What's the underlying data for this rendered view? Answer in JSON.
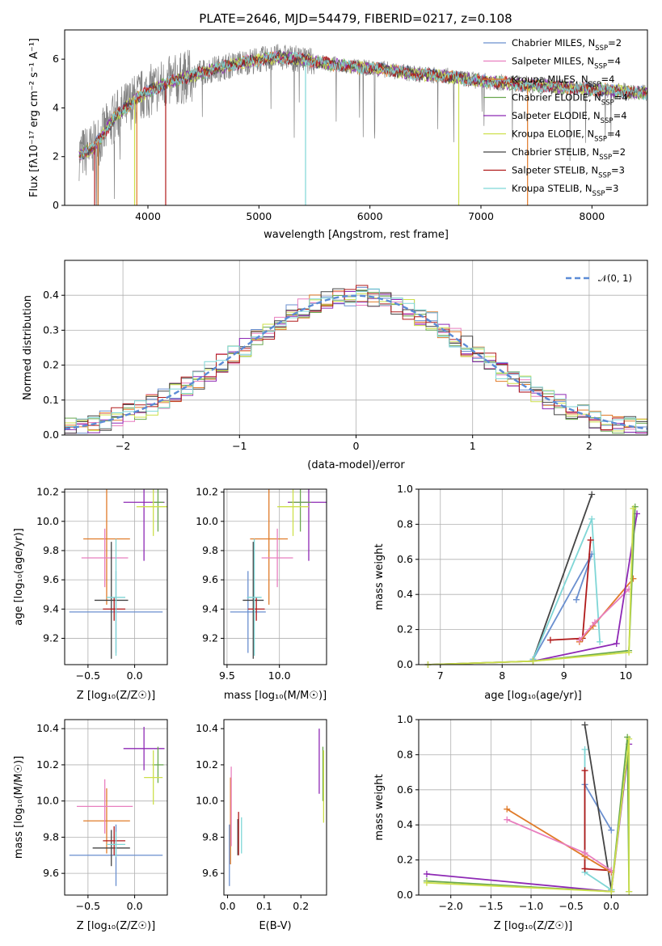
{
  "chart_data": [
    {
      "id": "spectrum",
      "type": "line",
      "title": "PLATE=2646, MJD=54479, FIBERID=0217, z=0.108",
      "xlabel": "wavelength [Angstrom, rest frame]",
      "ylabel": "Flux [fλ10⁻¹⁷ erg cm⁻² s⁻¹ A⁻¹]",
      "xlim": [
        3250,
        8500
      ],
      "ylim": [
        0,
        7.2
      ],
      "xticks": [
        4000,
        5000,
        6000,
        7000,
        8000
      ],
      "yticks": [
        0,
        2,
        4,
        6
      ],
      "grid": false,
      "legend_position": "right",
      "continuum": {
        "x": [
          3380,
          3500,
          3700,
          3900,
          4100,
          4300,
          4600,
          4900,
          5200,
          5500,
          5800,
          6100,
          6400,
          6700,
          7000,
          7300,
          7600,
          7900,
          8200,
          8500
        ],
        "y": [
          2.1,
          2.3,
          3.6,
          4.4,
          4.9,
          5.2,
          5.6,
          5.9,
          6.1,
          5.9,
          5.7,
          5.6,
          5.4,
          5.3,
          5.1,
          5.0,
          4.9,
          4.8,
          4.7,
          4.6
        ]
      },
      "series": [
        {
          "name": "Chabrier MILES, N_SSP=2",
          "color": "#6a8fcf"
        },
        {
          "name": "Salpeter MILES, N_SSP=4",
          "color": "#e87fbf"
        },
        {
          "name": "Kroupa MILES, N_SSP=4",
          "color": "#e07b29"
        },
        {
          "name": "Chabrier ELODIE, N_SSP=4",
          "color": "#6aa84f"
        },
        {
          "name": "Salpeter ELODIE, N_SSP=4",
          "color": "#8e29b5"
        },
        {
          "name": "Kroupa ELODIE, N_SSP=4",
          "color": "#cde04a"
        },
        {
          "name": "Chabrier STELIB, N_SSP=2",
          "color": "#444444"
        },
        {
          "name": "Salpeter STELIB, N_SSP=3",
          "color": "#b01a1a"
        },
        {
          "name": "Kroupa STELIB, N_SSP=3",
          "color": "#7fd6d6"
        }
      ],
      "data_color": "#808080",
      "legend_entries": [
        {
          "label": "Chabrier MILES, N",
          "sub": "SSP",
          "rest": "=2"
        },
        {
          "label": "Salpeter MILES, N",
          "sub": "SSP",
          "rest": "=4"
        },
        {
          "label": "Kroupa MILES, N",
          "sub": "SSP",
          "rest": "=4"
        },
        {
          "label": "Chabrier ELODIE, N",
          "sub": "SSP",
          "rest": "=4"
        },
        {
          "label": "Salpeter ELODIE, N",
          "sub": "SSP",
          "rest": "=4"
        },
        {
          "label": "Kroupa ELODIE, N",
          "sub": "SSP",
          "rest": "=4"
        },
        {
          "label": "Chabrier STELIB, N",
          "sub": "SSP",
          "rest": "=2"
        },
        {
          "label": "Salpeter STELIB, N",
          "sub": "SSP",
          "rest": "=3"
        },
        {
          "label": "Kroupa STELIB, N",
          "sub": "SSP",
          "rest": "=3"
        }
      ]
    },
    {
      "id": "residuals",
      "type": "line",
      "xlabel": "(data-model)/error",
      "ylabel": "Normed distribution",
      "xlim": [
        -2.5,
        2.5
      ],
      "ylim": [
        0,
        0.5
      ],
      "xticks": [
        -2,
        -1,
        0,
        1,
        2
      ],
      "yticks": [
        0.0,
        0.1,
        0.2,
        0.3,
        0.4
      ],
      "grid": true,
      "legend": "𝒩(0, 1)",
      "legend_position": "top-right",
      "bin_width": 0.1,
      "histogram_bins": [
        -2.5,
        -2.4,
        -2.3,
        -2.2,
        -2.1,
        -2.0,
        -1.9,
        -1.8,
        -1.7,
        -1.6,
        -1.5,
        -1.4,
        -1.3,
        -1.2,
        -1.1,
        -1.0,
        -0.9,
        -0.8,
        -0.7,
        -0.6,
        -0.5,
        -0.4,
        -0.3,
        -0.2,
        -0.1,
        0.0,
        0.1,
        0.2,
        0.3,
        0.4,
        0.5,
        0.6,
        0.7,
        0.8,
        0.9,
        1.0,
        1.1,
        1.2,
        1.3,
        1.4,
        1.5,
        1.6,
        1.7,
        1.8,
        1.9,
        2.0,
        2.1,
        2.2,
        2.3,
        2.4
      ],
      "normal_curve": {
        "mean": 0,
        "sigma": 1
      }
    },
    {
      "id": "age-vs-Z",
      "type": "scatter",
      "xlabel": "Z [log₁₀(Z/Z☉)]",
      "ylabel": "age  [log₁₀(age/yr)]",
      "xlim": [
        -0.75,
        0.35
      ],
      "ylim": [
        9.02,
        10.22
      ],
      "xticks": [
        -0.5,
        0.0
      ],
      "yticks": [
        9.2,
        9.4,
        9.6,
        9.8,
        10.0,
        10.2
      ],
      "grid": true,
      "points": [
        {
          "color": "#6a8fcf",
          "x": -0.2,
          "xerr": 0.5,
          "y": 9.38,
          "yerr": 0.28
        },
        {
          "color": "#e07b29",
          "x": -0.3,
          "xerr": 0.25,
          "y": 9.88,
          "yerr": 0.45
        },
        {
          "color": "#e87fbf",
          "x": -0.32,
          "xerr": 0.25,
          "y": 9.75,
          "yerr": 0.2
        },
        {
          "color": "#444444",
          "x": -0.25,
          "xerr": 0.18,
          "y": 9.46,
          "yerr": 0.4
        },
        {
          "color": "#b01a1a",
          "x": -0.22,
          "xerr": 0.12,
          "y": 9.4,
          "yerr": 0.08
        },
        {
          "color": "#7fd6d6",
          "x": -0.2,
          "xerr": 0.1,
          "y": 9.48,
          "yerr": 0.4
        },
        {
          "color": "#8e29b5",
          "x": 0.1,
          "xerr": 0.22,
          "y": 10.13,
          "yerr": 0.4
        },
        {
          "color": "#6aa84f",
          "x": 0.25,
          "xerr": 0.06,
          "y": 10.13,
          "yerr": 0.2
        },
        {
          "color": "#cde04a",
          "x": 0.2,
          "xerr": 0.18,
          "y": 10.1,
          "yerr": 0.2
        }
      ]
    },
    {
      "id": "age-vs-mass",
      "type": "scatter",
      "xlabel": "mass [log₁₀(M/M☉)]",
      "ylabel": "",
      "xlim": [
        9.47,
        10.45
      ],
      "ylim": [
        9.02,
        10.22
      ],
      "xticks": [
        9.5,
        10.0
      ],
      "yticks": [
        9.2,
        9.4,
        9.6,
        9.8,
        10.0,
        10.2
      ],
      "grid": true,
      "points": [
        {
          "color": "#6a8fcf",
          "x": 9.7,
          "xerr": 0.17,
          "y": 9.38,
          "yerr": 0.28
        },
        {
          "color": "#e07b29",
          "x": 9.9,
          "xerr": 0.18,
          "y": 9.88,
          "yerr": 0.45
        },
        {
          "color": "#e87fbf",
          "x": 9.98,
          "xerr": 0.15,
          "y": 9.75,
          "yerr": 0.2
        },
        {
          "color": "#444444",
          "x": 9.75,
          "xerr": 0.1,
          "y": 9.46,
          "yerr": 0.4
        },
        {
          "color": "#b01a1a",
          "x": 9.78,
          "xerr": 0.08,
          "y": 9.4,
          "yerr": 0.08
        },
        {
          "color": "#7fd6d6",
          "x": 9.76,
          "xerr": 0.07,
          "y": 9.48,
          "yerr": 0.4
        },
        {
          "color": "#8e29b5",
          "x": 10.28,
          "xerr": 0.2,
          "y": 10.13,
          "yerr": 0.4
        },
        {
          "color": "#6aa84f",
          "x": 10.2,
          "xerr": 0.1,
          "y": 10.13,
          "yerr": 0.2
        },
        {
          "color": "#cde04a",
          "x": 10.13,
          "xerr": 0.15,
          "y": 10.1,
          "yerr": 0.2
        }
      ]
    },
    {
      "id": "massweight-vs-age",
      "type": "line",
      "xlabel": "age  [log₁₀(age/yr)]",
      "ylabel": "mass weight",
      "xlim": [
        6.65,
        10.35
      ],
      "ylim": [
        0,
        1.0
      ],
      "xticks": [
        7,
        8,
        9,
        10
      ],
      "yticks": [
        0.0,
        0.2,
        0.4,
        0.6,
        0.8,
        1.0
      ],
      "grid": true,
      "series": [
        {
          "color": "#6a8fcf",
          "x": [
            8.5,
            9.45,
            9.2
          ],
          "y": [
            0.03,
            0.63,
            0.37
          ]
        },
        {
          "color": "#444444",
          "x": [
            8.5,
            9.45
          ],
          "y": [
            0.03,
            0.97
          ]
        },
        {
          "color": "#7fd6d6",
          "x": [
            8.5,
            9.45,
            9.58
          ],
          "y": [
            0.03,
            0.83,
            0.13
          ]
        },
        {
          "color": "#b01a1a",
          "x": [
            8.78,
            9.3,
            9.43
          ],
          "y": [
            0.14,
            0.15,
            0.71
          ]
        },
        {
          "color": "#e07b29",
          "x": [
            9.25,
            9.47,
            10.12
          ],
          "y": [
            0.13,
            0.22,
            0.49
          ]
        },
        {
          "color": "#e87fbf",
          "x": [
            9.25,
            9.5,
            10.05
          ],
          "y": [
            0.14,
            0.24,
            0.43
          ]
        },
        {
          "color": "#8e29b5",
          "x": [
            6.8,
            8.5,
            9.85,
            10.18
          ],
          "y": [
            0.0,
            0.02,
            0.12,
            0.86
          ]
        },
        {
          "color": "#6aa84f",
          "x": [
            6.8,
            8.5,
            10.05,
            10.15
          ],
          "y": [
            0.0,
            0.02,
            0.08,
            0.9
          ]
        },
        {
          "color": "#cde04a",
          "x": [
            6.8,
            8.5,
            10.05,
            10.12
          ],
          "y": [
            0.0,
            0.02,
            0.07,
            0.89
          ]
        }
      ]
    },
    {
      "id": "mass-vs-Z",
      "type": "scatter",
      "xlabel": "Z [log₁₀(Z/Z☉)]",
      "ylabel": "mass [log₁₀(M/M☉)]",
      "xlim": [
        -0.75,
        0.35
      ],
      "ylim": [
        9.48,
        10.45
      ],
      "xticks": [
        -0.5,
        0.0
      ],
      "yticks": [
        9.6,
        9.8,
        10.0,
        10.2,
        10.4
      ],
      "grid": true,
      "points": [
        {
          "color": "#6a8fcf",
          "x": -0.2,
          "xerr": 0.5,
          "y": 9.7,
          "yerr": 0.17
        },
        {
          "color": "#e07b29",
          "x": -0.3,
          "xerr": 0.25,
          "y": 9.89,
          "yerr": 0.18
        },
        {
          "color": "#e87fbf",
          "x": -0.32,
          "xerr": 0.3,
          "y": 9.97,
          "yerr": 0.15
        },
        {
          "color": "#444444",
          "x": -0.25,
          "xerr": 0.2,
          "y": 9.74,
          "yerr": 0.1
        },
        {
          "color": "#b01a1a",
          "x": -0.22,
          "xerr": 0.12,
          "y": 9.78,
          "yerr": 0.08
        },
        {
          "color": "#7fd6d6",
          "x": -0.2,
          "xerr": 0.1,
          "y": 9.76,
          "yerr": 0.07
        },
        {
          "color": "#8e29b5",
          "x": 0.1,
          "xerr": 0.22,
          "y": 10.29,
          "yerr": 0.12
        },
        {
          "color": "#6aa84f",
          "x": 0.25,
          "xerr": 0.06,
          "y": 10.2,
          "yerr": 0.1
        },
        {
          "color": "#cde04a",
          "x": 0.2,
          "xerr": 0.1,
          "y": 10.13,
          "yerr": 0.15
        }
      ]
    },
    {
      "id": "mass-vs-ebv",
      "type": "scatter",
      "xlabel": "E(B-V)",
      "ylabel": "",
      "xlim": [
        -0.01,
        0.27
      ],
      "ylim": [
        9.48,
        10.45
      ],
      "xticks": [
        0.0,
        0.1,
        0.2
      ],
      "yticks": [
        9.6,
        9.8,
        10.0,
        10.2,
        10.4
      ],
      "grid": false,
      "points": [
        {
          "color": "#6a8fcf",
          "x": 0.005,
          "y": 9.7,
          "yerr": 0.17
        },
        {
          "color": "#e07b29",
          "x": 0.008,
          "y": 9.89,
          "yerr": 0.24
        },
        {
          "color": "#e87fbf",
          "x": 0.01,
          "y": 9.97,
          "yerr": 0.22
        },
        {
          "color": "#444444",
          "x": 0.028,
          "y": 9.8,
          "yerr": 0.1
        },
        {
          "color": "#b01a1a",
          "x": 0.03,
          "y": 9.82,
          "yerr": 0.12
        },
        {
          "color": "#7fd6d6",
          "x": 0.038,
          "y": 9.81,
          "yerr": 0.1
        },
        {
          "color": "#8e29b5",
          "x": 0.25,
          "y": 10.22,
          "yerr": 0.18
        },
        {
          "color": "#6aa84f",
          "x": 0.26,
          "y": 10.15,
          "yerr": 0.15
        },
        {
          "color": "#cde04a",
          "x": 0.262,
          "y": 10.08,
          "yerr": 0.2
        }
      ]
    },
    {
      "id": "massweight-vs-Z",
      "type": "line",
      "xlabel": "Z [log₁₀(Z/Z☉)]",
      "ylabel": "mass weight",
      "xlim": [
        -2.4,
        0.45
      ],
      "ylim": [
        0,
        1.0
      ],
      "xticks": [
        -2.0,
        -1.5,
        -1.0,
        -0.5,
        0.0
      ],
      "yticks": [
        0.0,
        0.2,
        0.4,
        0.6,
        0.8,
        1.0
      ],
      "grid": true,
      "series": [
        {
          "color": "#6a8fcf",
          "x": [
            -0.33,
            0.0
          ],
          "y": [
            0.63,
            0.37
          ]
        },
        {
          "color": "#444444",
          "x": [
            -0.33,
            0.0
          ],
          "y": [
            0.97,
            0.03
          ]
        },
        {
          "color": "#7fd6d6",
          "x": [
            -0.33,
            -0.33,
            0.0
          ],
          "y": [
            0.83,
            0.13,
            0.03
          ]
        },
        {
          "color": "#b01a1a",
          "x": [
            -0.33,
            -0.33,
            0.0
          ],
          "y": [
            0.71,
            0.15,
            0.14
          ]
        },
        {
          "color": "#e07b29",
          "x": [
            -1.3,
            -0.33,
            0.0
          ],
          "y": [
            0.49,
            0.22,
            0.13
          ]
        },
        {
          "color": "#e87fbf",
          "x": [
            -1.3,
            -0.33,
            0.0
          ],
          "y": [
            0.43,
            0.24,
            0.14
          ]
        },
        {
          "color": "#8e29b5",
          "x": [
            -2.3,
            0.0,
            0.22
          ],
          "y": [
            0.12,
            0.02,
            0.86
          ]
        },
        {
          "color": "#6aa84f",
          "x": [
            -2.3,
            0.0,
            0.2,
            0.22
          ],
          "y": [
            0.08,
            0.02,
            0.9,
            0.02
          ]
        },
        {
          "color": "#cde04a",
          "x": [
            -2.3,
            0.0,
            0.22,
            0.22
          ],
          "y": [
            0.07,
            0.02,
            0.89,
            0.02
          ]
        }
      ]
    }
  ]
}
